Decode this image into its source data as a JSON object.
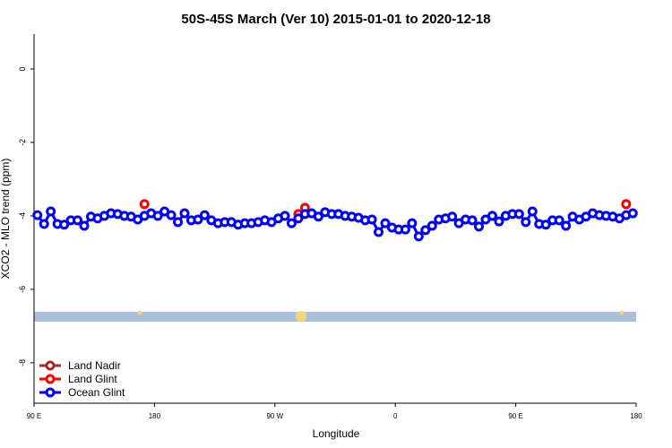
{
  "chart_data": {
    "type": "line",
    "title": "50S-45S March (Ver 10)   2015-01-01 to 2020-12-18",
    "x_label": "Longitude",
    "y_label": "XCO2 - MLO trend (ppm)",
    "xlim": [
      90,
      540
    ],
    "xticks": [
      {
        "value": 90,
        "label": "90 E"
      },
      {
        "value": 180,
        "label": "180"
      },
      {
        "value": 270,
        "label": "90 W"
      },
      {
        "value": 360,
        "label": "0"
      },
      {
        "value": 450,
        "label": "90 E"
      },
      {
        "value": 540,
        "label": "180"
      }
    ],
    "ylim": [
      -9.1,
      0.95
    ],
    "yticks": [
      0,
      -2,
      -4,
      -6,
      -8
    ],
    "legend": "bottom-left",
    "series": [
      {
        "name": "Land Nadir",
        "color": "#a52a2a",
        "x": [],
        "values": []
      },
      {
        "name": "Land Glint",
        "color": "#ff0000",
        "x": [
          172.5,
          287.5,
          292.5,
          532.5
        ],
        "values": [
          -3.68,
          -3.95,
          -3.78,
          -3.68
        ]
      },
      {
        "name": "Ocean Glint",
        "color": "#0000ff",
        "x": [
          92.5,
          97.5,
          102.5,
          107.5,
          112.5,
          117.5,
          122.5,
          127.5,
          132.5,
          137.5,
          142.5,
          147.5,
          152.5,
          157.5,
          162.5,
          167.5,
          172.5,
          177.5,
          182.5,
          187.5,
          192.5,
          197.5,
          202.5,
          207.5,
          212.5,
          217.5,
          222.5,
          227.5,
          232.5,
          237.5,
          242.5,
          247.5,
          252.5,
          257.5,
          262.5,
          267.5,
          272.5,
          277.5,
          282.5,
          287.5,
          292.5,
          297.5,
          302.5,
          307.5,
          312.5,
          317.5,
          322.5,
          327.5,
          332.5,
          337.5,
          342.5,
          347.5,
          352.5,
          357.5,
          362.5,
          367.5,
          372.5,
          377.5,
          382.5,
          387.5,
          392.5,
          397.5,
          402.5,
          407.5,
          412.5,
          417.5,
          422.5,
          427.5,
          432.5,
          437.5,
          442.5,
          447.5,
          452.5,
          457.5,
          462.5,
          467.5,
          472.5,
          477.5,
          482.5,
          487.5,
          492.5,
          497.5,
          502.5,
          507.5,
          512.5,
          517.5,
          522.5,
          527.5,
          532.5,
          537.5
        ],
        "values": [
          -3.98,
          -4.22,
          -3.88,
          -4.22,
          -4.24,
          -4.12,
          -4.12,
          -4.27,
          -4.02,
          -4.07,
          -4.0,
          -3.93,
          -3.95,
          -4.0,
          -4.02,
          -4.1,
          -4.0,
          -3.93,
          -4.0,
          -3.88,
          -3.98,
          -4.17,
          -3.93,
          -4.12,
          -4.1,
          -3.98,
          -4.12,
          -4.2,
          -4.17,
          -4.17,
          -4.24,
          -4.2,
          -4.2,
          -4.17,
          -4.12,
          -4.17,
          -4.07,
          -4.0,
          -4.2,
          -4.07,
          -3.95,
          -3.93,
          -4.02,
          -3.9,
          -3.95,
          -3.95,
          -4.0,
          -4.02,
          -4.05,
          -4.12,
          -4.1,
          -4.44,
          -4.2,
          -4.32,
          -4.37,
          -4.37,
          -4.2,
          -4.56,
          -4.39,
          -4.27,
          -4.1,
          -4.07,
          -4.02,
          -4.2,
          -4.1,
          -4.12,
          -4.29,
          -4.1,
          -4.0,
          -4.15,
          -4.0,
          -3.95,
          -3.95,
          -4.17,
          -3.88,
          -4.22,
          -4.24,
          -4.12,
          -4.12,
          -4.27,
          -4.02,
          -4.1,
          -4.02,
          -3.93,
          -3.98,
          -4.0,
          -4.02,
          -4.07,
          -3.98,
          -3.93
        ]
      }
    ]
  }
}
